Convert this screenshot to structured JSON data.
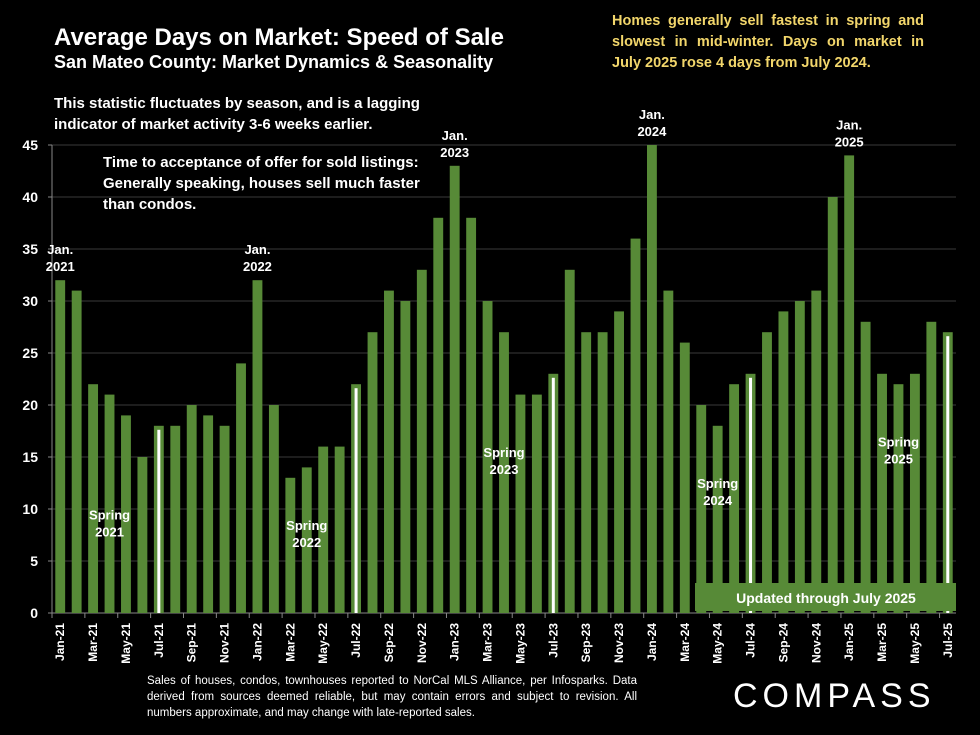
{
  "header": {
    "title": "Average Days on Market:  Speed of Sale",
    "subtitle": "San Mateo County: Market Dynamics & Seasonality",
    "note_lagging": "This statistic fluctuates by season, and is a lagging indicator of market activity 3-6 weeks earlier.",
    "note_definition": "Time to acceptance of offer for sold listings: Generally speaking, houses sell much faster than condos."
  },
  "callout": "Homes generally sell fastest in spring and slowest in mid-winter. Days on market in July 2025 rose 4 days from July 2024.",
  "footer": {
    "disclaimer": "Sales of houses, condos, townhouses reported to NorCal MLS Alliance, per Infosparks. Data derived from sources deemed reliable, but may contain errors and subject to revision. All numbers approximate, and may change with late-reported sales.",
    "logo": "COMPASS"
  },
  "colors": {
    "bar": "#578a37",
    "july_marker": "#ffffff",
    "callout_text": "#f2d66b",
    "gridline": "#3a3a3a"
  },
  "chart_data": {
    "type": "bar",
    "title": "Average Days on Market: Speed of Sale",
    "xlabel": "",
    "ylabel": "",
    "ylim": [
      0,
      45
    ],
    "yticks": [
      0,
      5,
      10,
      15,
      20,
      25,
      30,
      35,
      40,
      45
    ],
    "grid": true,
    "categories": [
      "Jan-21",
      "Feb-21",
      "Mar-21",
      "Apr-21",
      "May-21",
      "Jun-21",
      "Jul-21",
      "Aug-21",
      "Sep-21",
      "Oct-21",
      "Nov-21",
      "Dec-21",
      "Jan-22",
      "Feb-22",
      "Mar-22",
      "Apr-22",
      "May-22",
      "Jun-22",
      "Jul-22",
      "Aug-22",
      "Sep-22",
      "Oct-22",
      "Nov-22",
      "Dec-22",
      "Jan-23",
      "Feb-23",
      "Mar-23",
      "Apr-23",
      "May-23",
      "Jun-23",
      "Jul-23",
      "Aug-23",
      "Sep-23",
      "Oct-23",
      "Nov-23",
      "Dec-23",
      "Jan-24",
      "Feb-24",
      "Mar-24",
      "Apr-24",
      "May-24",
      "Jun-24",
      "Jul-24",
      "Aug-24",
      "Sep-24",
      "Oct-24",
      "Nov-24",
      "Dec-24",
      "Jan-25",
      "Feb-25",
      "Mar-25",
      "Apr-25",
      "May-25",
      "Jun-25",
      "Jul-25"
    ],
    "xtick_labels": [
      "Jan-21",
      "Mar-21",
      "May-21",
      "Jul-21",
      "Sep-21",
      "Nov-21",
      "Jan-22",
      "Mar-22",
      "May-22",
      "Jul-22",
      "Sep-22",
      "Nov-22",
      "Jan-23",
      "Mar-23",
      "May-23",
      "Jul-23",
      "Sep-23",
      "Nov-23",
      "Jan-24",
      "Mar-24",
      "May-24",
      "Jul-24",
      "Sep-24",
      "Nov-24",
      "Jan-25",
      "Mar-25",
      "May-25",
      "Jul-25"
    ],
    "values": [
      32,
      31,
      22,
      21,
      19,
      15,
      18,
      18,
      20,
      19,
      18,
      24,
      32,
      20,
      13,
      14,
      16,
      16,
      22,
      27,
      31,
      30,
      33,
      38,
      43,
      38,
      30,
      27,
      21,
      21,
      23,
      33,
      27,
      27,
      29,
      36,
      45,
      31,
      26,
      20,
      18,
      22,
      23,
      27,
      29,
      30,
      31,
      40,
      44,
      28,
      23,
      22,
      23,
      28,
      27
    ],
    "highlighted_months": [
      "Jul-21",
      "Jul-22",
      "Jul-23",
      "Jul-24",
      "Jul-25"
    ],
    "annotations": [
      {
        "label": "Jan.\n2021",
        "category": "Jan-21"
      },
      {
        "label": "Jan.\n2022",
        "category": "Jan-22"
      },
      {
        "label": "Jan.\n2023",
        "category": "Jan-23"
      },
      {
        "label": "Jan.\n2024",
        "category": "Jan-24"
      },
      {
        "label": "Jan.\n2025",
        "category": "Jan-25"
      },
      {
        "label": "Spring\n2021",
        "category": "Apr-21",
        "value": 9
      },
      {
        "label": "Spring\n2022",
        "category": "Apr-22",
        "value": 8
      },
      {
        "label": "Spring\n2023",
        "category": "Apr-23",
        "value": 15
      },
      {
        "label": "Spring\n2024",
        "category": "May-24",
        "value": 12
      },
      {
        "label": "Spring\n2025",
        "category": "Apr-25",
        "value": 16
      }
    ],
    "banner": "Updated through July 2025"
  }
}
